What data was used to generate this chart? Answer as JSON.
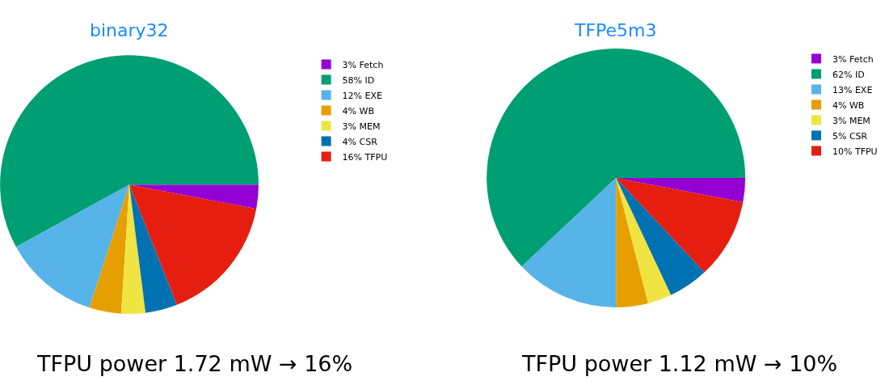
{
  "chart_data": [
    {
      "type": "pie",
      "title": "binary32",
      "categories": [
        "3% Fetch",
        "58% ID",
        "12% EXE",
        "4% WB",
        "3% MEM",
        "4% CSR",
        "16% TFPU"
      ],
      "values": [
        3,
        58,
        12,
        4,
        3,
        4,
        16
      ],
      "colors": [
        "#9400d3",
        "#009e73",
        "#56b4e9",
        "#e69f00",
        "#f0e442",
        "#0072b2",
        "#e51e10"
      ],
      "legend": "right",
      "annotations": [
        "TFPU power 1.72 mW → 16%"
      ]
    },
    {
      "type": "pie",
      "title": "TFPe5m3",
      "categories": [
        "3% Fetch",
        "62% ID",
        "13% EXE",
        "4% WB",
        "3% MEM",
        "5% CSR",
        "10% TFPU"
      ],
      "values": [
        3,
        62,
        13,
        4,
        3,
        5,
        10
      ],
      "colors": [
        "#9400d3",
        "#009e73",
        "#56b4e9",
        "#e69f00",
        "#f0e442",
        "#0072b2",
        "#e51e10"
      ],
      "legend": "right",
      "annotations": [
        "TFPU power 1.12 mW → 10%"
      ]
    }
  ]
}
